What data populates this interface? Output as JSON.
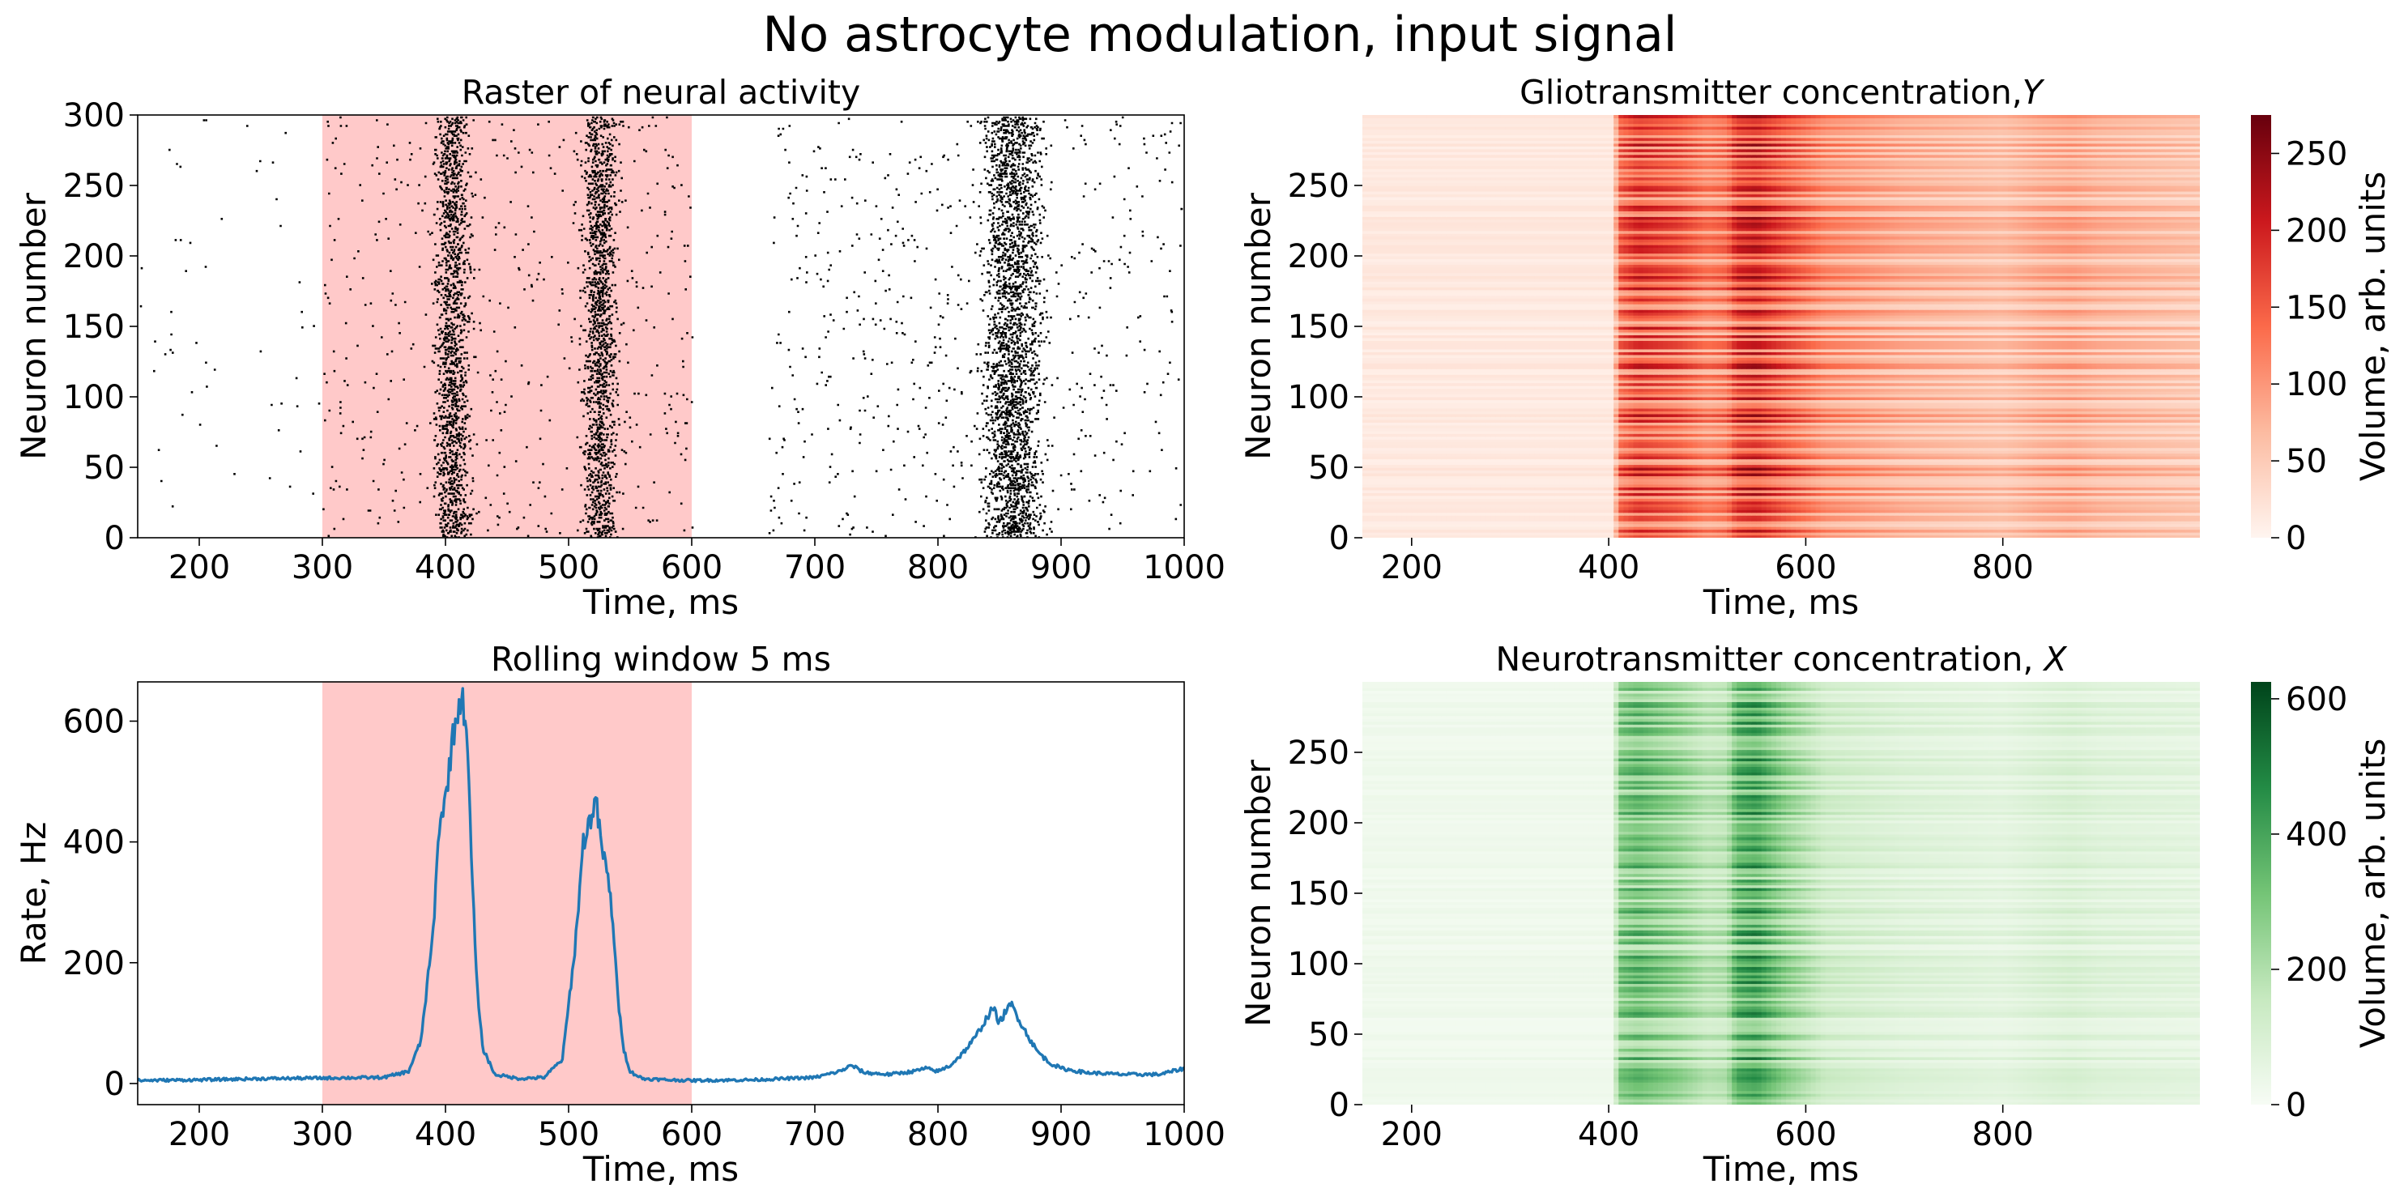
{
  "figure": {
    "title": "No astrocyte modulation, input signal"
  },
  "chart_data": [
    {
      "id": "raster",
      "type": "scatter",
      "title": "Raster of neural activity",
      "xlabel": "Time, ms",
      "ylabel": "Neuron number",
      "xlim": [
        150,
        1000
      ],
      "ylim": [
        0,
        300
      ],
      "xticks": [
        "200",
        "300",
        "400",
        "500",
        "600",
        "700",
        "800",
        "900",
        "1000"
      ],
      "yticks": [
        "0",
        "50",
        "100",
        "150",
        "200",
        "250",
        "300"
      ],
      "shaded_interval": [
        300,
        600
      ],
      "shade_color": "#ffc9c9",
      "marker_color": "#000000",
      "activity_bands": [
        {
          "start": 385,
          "end": 425,
          "density": "dense"
        },
        {
          "start": 505,
          "end": 545,
          "density": "dense"
        },
        {
          "start": 825,
          "end": 895,
          "density": "dense"
        },
        {
          "start": 660,
          "end": 1000,
          "density": "moderate"
        },
        {
          "start": 300,
          "end": 600,
          "density": "moderate"
        },
        {
          "start": 150,
          "end": 300,
          "density": "sparse"
        }
      ]
    },
    {
      "id": "rate",
      "type": "line",
      "title": "Rolling window 5 ms",
      "xlabel": "Time, ms",
      "ylabel": "Rate, Hz",
      "xlim": [
        150,
        1000
      ],
      "ylim": [
        -35,
        665
      ],
      "xticks": [
        "200",
        "300",
        "400",
        "500",
        "600",
        "700",
        "800",
        "900",
        "1000"
      ],
      "yticks": [
        "0",
        "200",
        "400",
        "600"
      ],
      "shaded_interval": [
        300,
        600
      ],
      "shade_color": "#ffc9c9",
      "line_color": "#1f77b4",
      "x": [
        150,
        200,
        250,
        300,
        350,
        370,
        380,
        390,
        395,
        400,
        405,
        410,
        413,
        417,
        420,
        425,
        430,
        440,
        460,
        480,
        495,
        505,
        512,
        518,
        522,
        525,
        528,
        532,
        536,
        540,
        545,
        550,
        560,
        580,
        600,
        650,
        700,
        720,
        730,
        740,
        760,
        780,
        790,
        800,
        810,
        820,
        830,
        840,
        845,
        850,
        855,
        860,
        865,
        870,
        880,
        890,
        900,
        920,
        950,
        980,
        1000
      ],
      "y": [
        5,
        6,
        8,
        9,
        10,
        20,
        70,
        250,
        430,
        470,
        560,
        620,
        640,
        600,
        430,
        180,
        60,
        15,
        8,
        10,
        40,
        220,
        400,
        440,
        470,
        420,
        380,
        340,
        270,
        140,
        55,
        20,
        8,
        6,
        5,
        6,
        10,
        20,
        30,
        18,
        15,
        20,
        25,
        20,
        30,
        50,
        75,
        110,
        125,
        100,
        120,
        130,
        110,
        90,
        55,
        35,
        25,
        18,
        15,
        15,
        25
      ]
    },
    {
      "id": "glio",
      "type": "heatmap",
      "title": "Gliotransmitter concentration,",
      "title_symbol": "Y",
      "xlabel": "Time, ms",
      "ylabel": "Neuron number",
      "colorbar_label": "Volume, arb. units",
      "colormap": "Reds",
      "xlim": [
        150,
        1000
      ],
      "ylim": [
        0,
        300
      ],
      "xticks": [
        "200",
        "400",
        "600",
        "800"
      ],
      "yticks": [
        "0",
        "50",
        "100",
        "150",
        "200",
        "250"
      ],
      "clim": [
        0,
        275
      ],
      "colorbar_ticks": [
        "0",
        "50",
        "100",
        "150",
        "200",
        "250"
      ],
      "time_profile": {
        "x": [
          150,
          405,
          410,
          430,
          470,
          500,
          520,
          530,
          550,
          580,
          620,
          700,
          800,
          840,
          870,
          900,
          1000
        ],
        "level": [
          15,
          15,
          130,
          160,
          140,
          110,
          120,
          165,
          175,
          140,
          100,
          75,
          60,
          75,
          80,
          70,
          55
        ]
      }
    },
    {
      "id": "neuro",
      "type": "heatmap",
      "title": "Neurotransmitter concentration,",
      "title_symbol": "X",
      "xlabel": "Time, ms",
      "ylabel": "Neuron number",
      "colorbar_label": "Volume, arb. units",
      "colormap": "Greens",
      "xlim": [
        150,
        1000
      ],
      "ylim": [
        0,
        300
      ],
      "xticks": [
        "200",
        "400",
        "600",
        "800"
      ],
      "yticks": [
        "0",
        "50",
        "100",
        "150",
        "200",
        "250"
      ],
      "clim": [
        0,
        625
      ],
      "colorbar_ticks": [
        "0",
        "200",
        "400",
        "600"
      ],
      "time_profile": {
        "x": [
          150,
          405,
          410,
          430,
          470,
          500,
          520,
          530,
          550,
          580,
          620,
          700,
          800,
          840,
          870,
          900,
          1000
        ],
        "level": [
          25,
          25,
          260,
          300,
          230,
          160,
          170,
          330,
          360,
          230,
          120,
          80,
          60,
          80,
          90,
          75,
          60
        ]
      }
    }
  ]
}
